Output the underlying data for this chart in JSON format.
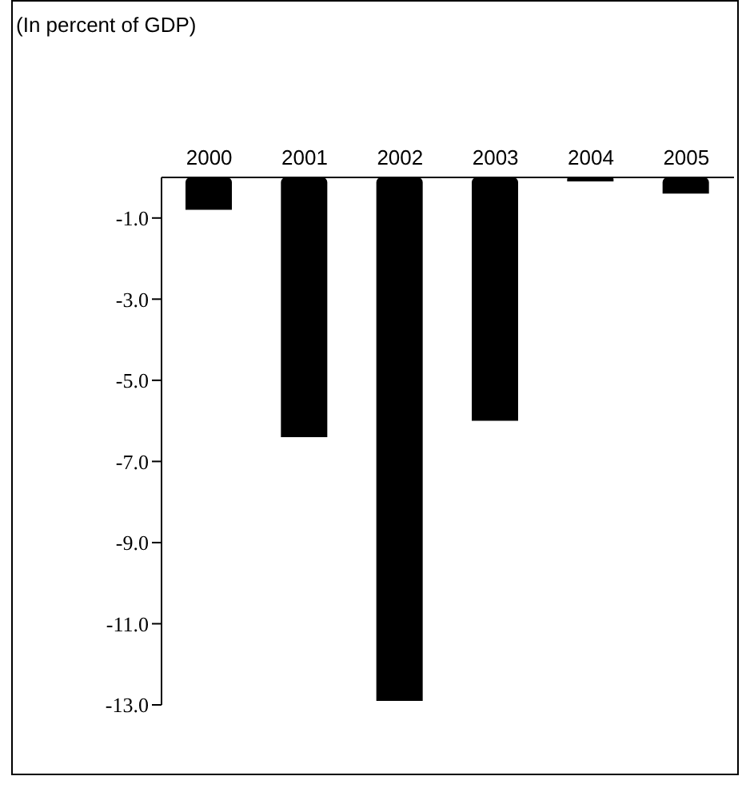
{
  "chart_data": {
    "type": "bar",
    "title": "(In percent of GDP)",
    "categories": [
      "2000",
      "2001",
      "2002",
      "2003",
      "2004",
      "2005"
    ],
    "values": [
      -0.8,
      -6.4,
      -12.9,
      -6.0,
      -0.1,
      -0.4
    ],
    "color": "#000000",
    "ylim": [
      -13,
      0
    ],
    "yticks": [
      {
        "value": -1,
        "label": "-1.0"
      },
      {
        "value": -3,
        "label": "-3.0"
      },
      {
        "value": -5,
        "label": "-5.0"
      },
      {
        "value": -7,
        "label": "-7.0"
      },
      {
        "value": -9,
        "label": "-9.0"
      },
      {
        "value": -11,
        "label": "-11.0"
      },
      {
        "value": -13,
        "label": "-13.0"
      }
    ],
    "grid": false,
    "legend": false
  }
}
